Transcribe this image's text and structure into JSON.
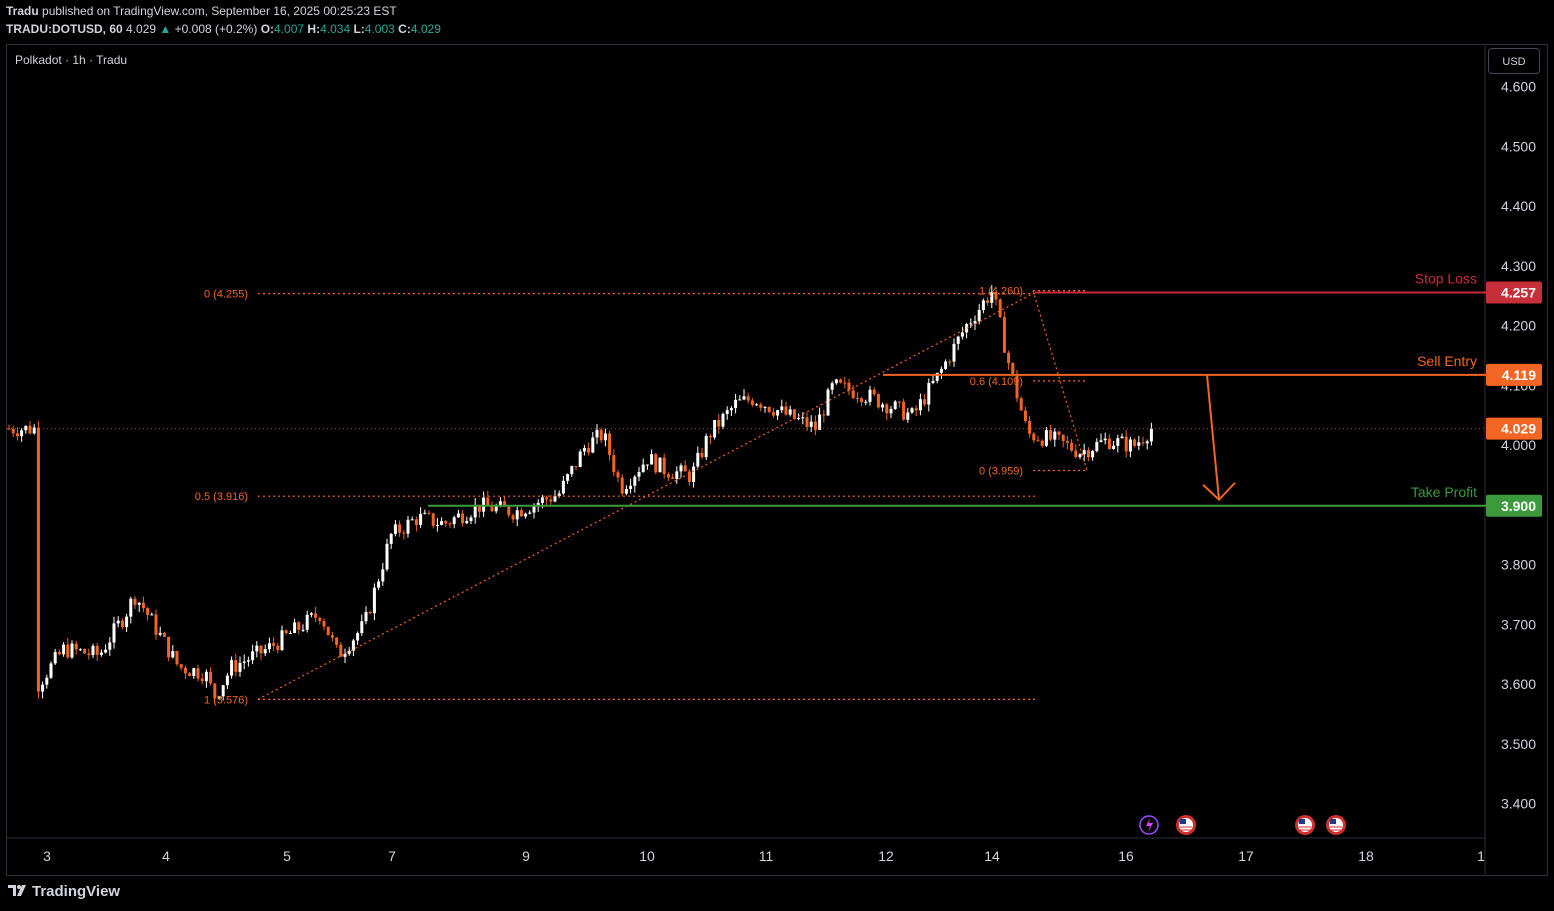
{
  "header": {
    "author": "Tradu",
    "published_text": "published on TradingView.com, September 16, 2025 00:25:23 EST",
    "symbol": "TRADU:DOTUSD, 60",
    "last": "4.029",
    "change_arrow": "▲",
    "change": "+0.008 (+0.2%)",
    "o_label": "O:",
    "o_value": "4.007",
    "h_label": "H:",
    "h_value": "4.034",
    "l_label": "L:",
    "l_value": "4.003",
    "c_label": "C:",
    "c_value": "4.029"
  },
  "legend": "Polkadot · 1h · Tradu",
  "currency_button": "USD",
  "footer": {
    "brand": "TradingView"
  },
  "colors": {
    "background": "#000000",
    "up_candle": "#ffffff",
    "down_candle": "#f26522",
    "fib": "#f26522",
    "stop_loss": "#c62f3a",
    "sell_entry": "#f26522",
    "take_profit": "#3c9a3c",
    "grid_text": "#d1d4dc"
  },
  "chart_data": {
    "type": "candlestick",
    "title": "Polkadot · 1h · Tradu",
    "currency": "USD",
    "ylim": [
      3.332,
      4.662
    ],
    "y_ticks": [
      "4.600",
      "4.500",
      "4.400",
      "4.300",
      "4.200",
      "4.100",
      "4.000",
      "3.900",
      "3.800",
      "3.700",
      "3.600",
      "3.500",
      "3.400"
    ],
    "x_ticks": [
      "3",
      "4",
      "5",
      "7",
      "9",
      "10",
      "11",
      "12",
      "14",
      "16",
      "17",
      "18",
      "1"
    ],
    "last_price": {
      "value": 4.029,
      "label": "4.029"
    },
    "price_path": [
      [
        "3",
        3.6
      ],
      [
        "3.3",
        3.66
      ],
      [
        "3.7",
        3.65
      ],
      [
        "4.0",
        3.72
      ],
      [
        "4.1",
        3.75
      ],
      [
        "4.2",
        3.73
      ],
      [
        "4.4",
        3.68
      ],
      [
        "4.6",
        3.63
      ],
      [
        "4.9",
        3.62
      ],
      [
        "5.0",
        3.58
      ],
      [
        "5.2",
        3.63
      ],
      [
        "5.6",
        3.66
      ],
      [
        "6.2",
        3.72
      ],
      [
        "6.4",
        3.65
      ],
      [
        "6.7",
        3.7
      ],
      [
        "7.0",
        3.85
      ],
      [
        "7.3",
        3.88
      ],
      [
        "7.6",
        3.87
      ],
      [
        "8.0",
        3.9
      ],
      [
        "8.4",
        3.89
      ],
      [
        "8.9",
        3.92
      ],
      [
        "9.2",
        4.0
      ],
      [
        "9.4",
        4.02
      ],
      [
        "9.6",
        3.93
      ],
      [
        "9.9",
        3.98
      ],
      [
        "10.1",
        3.96
      ],
      [
        "10.4",
        3.95
      ],
      [
        "10.6",
        4.02
      ],
      [
        "10.9",
        4.07
      ],
      [
        "11.1",
        4.08
      ],
      [
        "11.5",
        4.05
      ],
      [
        "11.8",
        4.03
      ],
      [
        "12.0",
        4.1
      ],
      [
        "12.3",
        4.09
      ],
      [
        "12.6",
        4.07
      ],
      [
        "12.9",
        4.05
      ],
      [
        "13.2",
        4.12
      ],
      [
        "13.5",
        4.2
      ],
      [
        "13.8",
        4.26
      ],
      [
        "14.0",
        4.13
      ],
      [
        "14.2",
        4.02
      ],
      [
        "14.5",
        4.01
      ],
      [
        "14.8",
        3.99
      ],
      [
        "15.1",
        4.01
      ],
      [
        "15.4",
        4.0
      ],
      [
        "15.6",
        4.029
      ]
    ],
    "fibonacci_left": [
      {
        "label": "0 (4.255)",
        "level": 4.255
      },
      {
        "label": "0.5 (3.916)",
        "level": 3.916
      },
      {
        "label": "1 (3.576)",
        "level": 3.576
      }
    ],
    "fibonacci_right": [
      {
        "label": "1 (4.260)",
        "level": 4.26
      },
      {
        "label": "0.6 (4.109)",
        "level": 4.109
      },
      {
        "label": "0 (3.959)",
        "level": 3.959
      }
    ],
    "levels": [
      {
        "name": "Stop Loss",
        "value": 4.257,
        "label": "4.257",
        "color": "#c62f3a"
      },
      {
        "name": "Sell Entry",
        "value": 4.119,
        "label": "4.119",
        "color": "#f26522"
      },
      {
        "name": "Take Profit",
        "value": 3.9,
        "label": "3.900",
        "color": "#3c9a3c"
      }
    ],
    "projection_arrow": {
      "from": 4.119,
      "to": 3.9,
      "direction": "down"
    },
    "event_markers": [
      "economic-event-icon",
      "us-flag-icon",
      "us-flag-icon",
      "us-flag-icon"
    ]
  }
}
